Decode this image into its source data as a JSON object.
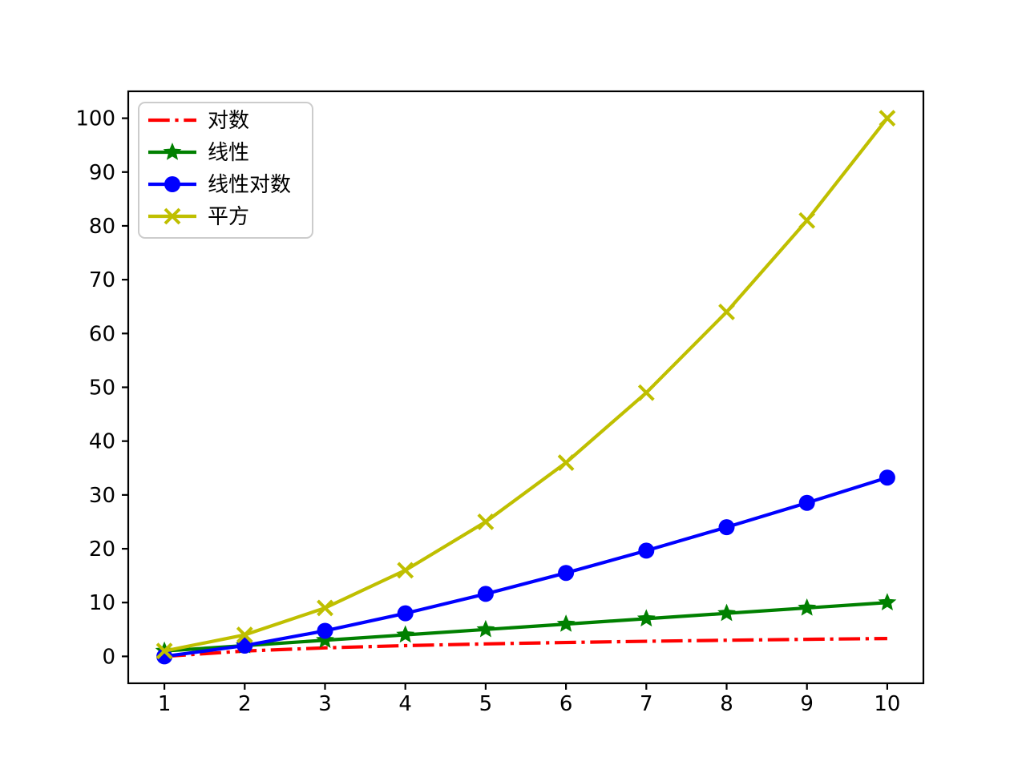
{
  "chart_data": {
    "type": "line",
    "title": "",
    "xlabel": "",
    "ylabel": "",
    "x": [
      1,
      2,
      3,
      4,
      5,
      6,
      7,
      8,
      9,
      10
    ],
    "series": [
      {
        "name": "对数",
        "color": "#ff0000",
        "linestyle": "dashdot",
        "marker": "none",
        "values": [
          0,
          1,
          1.585,
          2,
          2.322,
          2.585,
          2.807,
          3,
          3.17,
          3.322
        ]
      },
      {
        "name": "线性",
        "color": "#008000",
        "linestyle": "solid",
        "marker": "star",
        "values": [
          1,
          2,
          3,
          4,
          5,
          6,
          7,
          8,
          9,
          10
        ]
      },
      {
        "name": "线性对数",
        "color": "#0000ff",
        "linestyle": "solid",
        "marker": "circle",
        "values": [
          0,
          2,
          4.755,
          8,
          11.61,
          15.51,
          19.651,
          24,
          28.529,
          33.219
        ]
      },
      {
        "name": "平方",
        "color": "#bfbf00",
        "linestyle": "solid",
        "marker": "x",
        "values": [
          1,
          4,
          9,
          16,
          25,
          36,
          49,
          64,
          81,
          100
        ]
      }
    ],
    "xticks": [
      1,
      2,
      3,
      4,
      5,
      6,
      7,
      8,
      9,
      10
    ],
    "yticks": [
      0,
      10,
      20,
      30,
      40,
      50,
      60,
      70,
      80,
      90,
      100
    ],
    "xlim": [
      0.55,
      10.45
    ],
    "ylim": [
      -5,
      105
    ],
    "grid": false,
    "legend_position": "upper-left",
    "background": "#ffffff",
    "axis_color": "#000000",
    "legend_border_color": "#cccccc"
  }
}
